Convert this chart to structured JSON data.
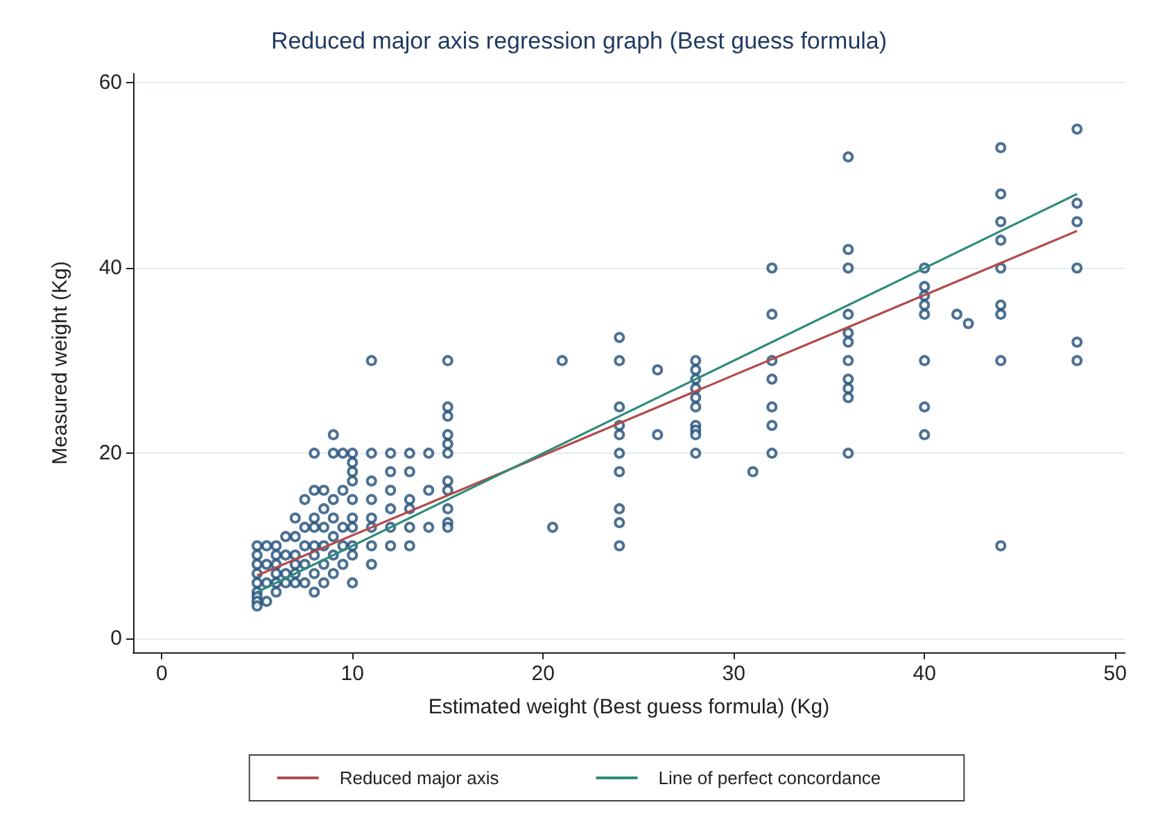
{
  "chart_data": {
    "type": "scatter",
    "title": "Reduced major axis regression graph (Best guess formula)",
    "xlabel": "Estimated weight (Best guess formula) (Kg)",
    "ylabel": "Measured weight (Kg)",
    "xlim": [
      -1.5,
      50.5
    ],
    "ylim": [
      -1.5,
      61
    ],
    "xticks": [
      0,
      10,
      20,
      30,
      40,
      50
    ],
    "yticks": [
      0,
      20,
      40,
      60
    ],
    "grid": "y",
    "legend": "bottom",
    "series": [
      {
        "color": "#1f4e79",
        "marker": "circle",
        "x": [
          48,
          48,
          48,
          48,
          48,
          48,
          44,
          44,
          44,
          44,
          44,
          44,
          44,
          44,
          44,
          41.7,
          42.3,
          40,
          40,
          40,
          40,
          40,
          40,
          40,
          40,
          36,
          36,
          36,
          36,
          36,
          36,
          36,
          36,
          36,
          36,
          36,
          32,
          32,
          32,
          32,
          32,
          32,
          32,
          31,
          28,
          28,
          28,
          28,
          28,
          28,
          28,
          28,
          28,
          28,
          26,
          26,
          24,
          24,
          24,
          24,
          24,
          24,
          24,
          24,
          24,
          24,
          21,
          20.5,
          15,
          15,
          15,
          15,
          15,
          15,
          15,
          15,
          15,
          15,
          15,
          14,
          14,
          14,
          13,
          13,
          13,
          13,
          13,
          13,
          12,
          12,
          12,
          12,
          12,
          12,
          11,
          11,
          11,
          11,
          11,
          11,
          11,
          11,
          10,
          10,
          10,
          10,
          10,
          10,
          10,
          10,
          10,
          10,
          9.5,
          9.5,
          9.5,
          9.5,
          9.5,
          9,
          9,
          9,
          9,
          9,
          9,
          9,
          8.5,
          8.5,
          8.5,
          8.5,
          8.5,
          8.5,
          8,
          8,
          8,
          8,
          8,
          8,
          8,
          8,
          7.5,
          7.5,
          7.5,
          7.5,
          7.5,
          7,
          7,
          7,
          7,
          7,
          7,
          6.5,
          6.5,
          6.5,
          6.5,
          6,
          6,
          6,
          6,
          6,
          6,
          5.5,
          5.5,
          5.5,
          5.5,
          5,
          5,
          5,
          5,
          5,
          5,
          5,
          5,
          5
        ],
        "values": [
          55,
          47,
          45,
          40,
          32,
          30,
          53,
          48,
          45,
          43,
          40,
          36,
          35,
          30,
          10,
          35,
          34,
          40,
          38,
          37,
          36,
          35,
          30,
          25,
          22,
          52,
          42,
          40,
          35,
          33,
          32,
          30,
          28,
          27,
          26,
          20,
          40,
          35,
          30,
          28,
          25,
          23,
          20,
          18,
          30,
          29,
          28,
          27,
          26,
          25,
          23,
          22.5,
          22,
          20,
          29,
          22,
          32.5,
          30,
          25,
          23,
          22,
          20,
          18,
          14,
          12.5,
          10,
          30,
          12,
          30,
          25,
          24,
          22,
          21,
          20,
          17,
          16,
          14,
          12.5,
          12,
          20,
          16,
          12,
          20,
          18,
          15,
          14,
          12,
          10,
          20,
          18,
          16,
          14,
          12,
          10,
          30,
          20,
          17,
          15,
          13,
          12,
          10,
          8,
          20,
          19,
          18,
          17,
          15,
          13,
          12,
          10,
          9,
          6,
          20,
          16,
          12,
          10,
          8,
          22,
          20,
          15,
          13,
          11,
          9,
          7,
          16,
          14,
          12,
          10,
          8,
          6,
          20,
          16,
          13,
          12,
          10,
          9,
          7,
          5,
          15,
          12,
          10,
          8,
          6,
          13,
          11,
          9,
          8,
          7,
          6,
          11,
          9,
          7,
          6,
          10,
          9,
          8,
          7,
          6,
          5,
          10,
          8,
          6,
          4,
          10,
          9,
          8,
          7,
          6,
          5,
          4.5,
          4,
          3.5
        ]
      },
      {
        "type": "line",
        "name": "Reduced major axis",
        "color": "#b24a4a",
        "marker": "none",
        "x": [
          5,
          48
        ],
        "values": [
          6.8,
          44
        ]
      },
      {
        "type": "line",
        "name": "Line of perfect concordance",
        "color": "#2e8b7a",
        "marker": "none",
        "x": [
          5,
          48
        ],
        "values": [
          5,
          48
        ]
      }
    ]
  }
}
